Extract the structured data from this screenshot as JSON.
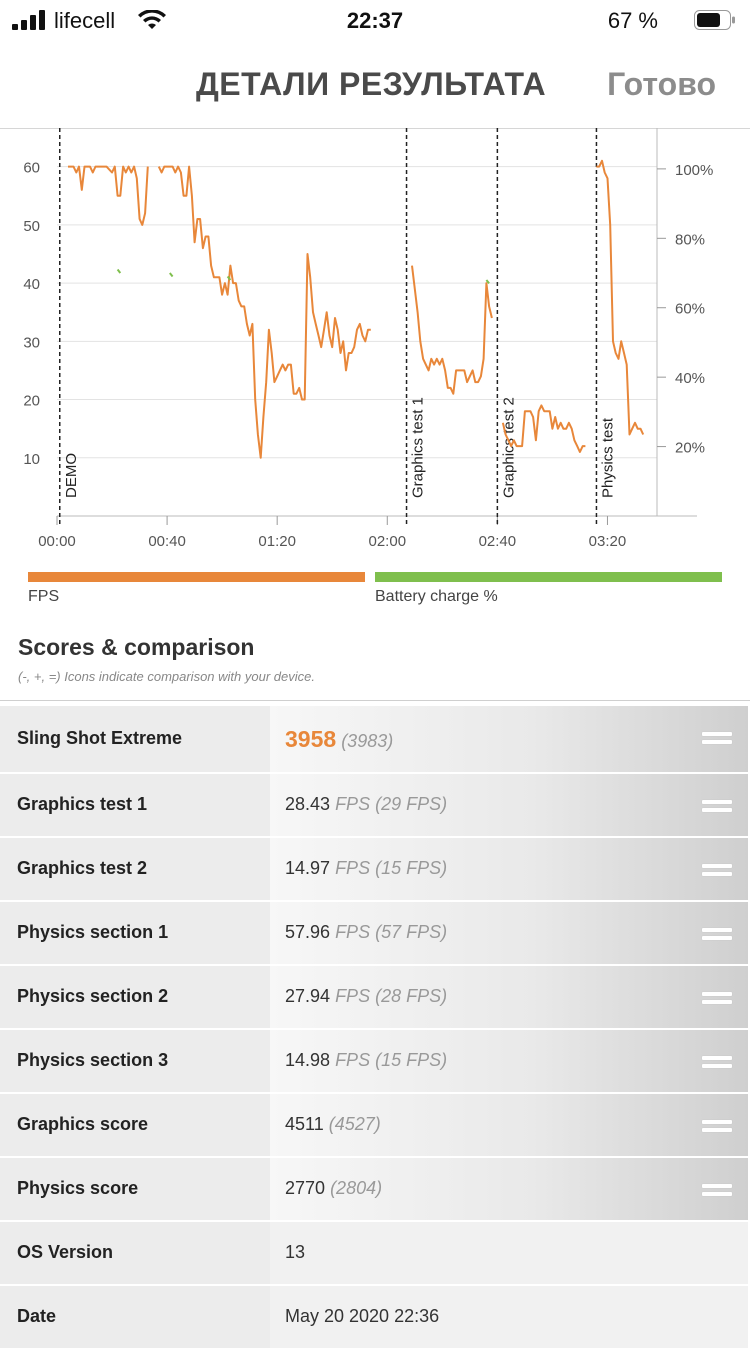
{
  "status": {
    "carrier": "lifecell",
    "time": "22:37",
    "battery": "67 %"
  },
  "nav": {
    "title": "ДЕТАЛИ РЕЗУЛЬТАТА",
    "done": "Готово"
  },
  "chart_data": {
    "type": "line",
    "x_ticks": [
      "00:00",
      "00:40",
      "01:20",
      "02:00",
      "02:40",
      "03:20"
    ],
    "x_tick_seconds": [
      0,
      40,
      80,
      120,
      160,
      200
    ],
    "xlim_seconds": [
      0,
      218
    ],
    "y_left_ticks": [
      "10",
      "20",
      "30",
      "40",
      "50",
      "60"
    ],
    "y_left_range": [
      0,
      62
    ],
    "y_right_ticks": [
      "20%",
      "40%",
      "60%",
      "80%",
      "100%"
    ],
    "y_right_range": [
      0,
      104
    ],
    "grid": true,
    "sections": [
      {
        "label": "DEMO",
        "t": 1
      },
      {
        "label": "Graphics test 1",
        "t": 127
      },
      {
        "label": "Graphics test 2",
        "t": 160
      },
      {
        "label": "Physics test",
        "t": 196
      }
    ],
    "series": [
      {
        "name": "FPS",
        "color": "#e8873a",
        "points": [
          [
            4,
            60
          ],
          [
            6,
            60
          ],
          [
            7,
            59
          ],
          [
            8,
            60
          ],
          [
            9,
            56
          ],
          [
            10,
            60
          ],
          [
            12,
            60
          ],
          [
            13,
            59
          ],
          [
            14,
            60
          ],
          [
            17,
            60
          ],
          [
            18,
            60
          ],
          [
            20,
            59
          ],
          [
            21,
            60
          ],
          [
            22,
            55
          ],
          [
            23,
            55
          ],
          [
            24,
            60
          ],
          [
            25,
            59
          ],
          [
            26,
            60
          ],
          [
            27,
            59
          ],
          [
            28,
            60
          ],
          [
            29,
            58
          ],
          [
            30,
            51
          ],
          [
            31,
            50
          ],
          [
            32,
            52
          ],
          [
            33,
            60
          ],
          [
            37,
            60
          ],
          [
            38,
            59
          ],
          [
            39,
            60
          ],
          [
            41,
            60
          ],
          [
            42,
            60
          ],
          [
            43,
            59
          ],
          [
            44,
            60
          ],
          [
            45,
            59
          ],
          [
            46,
            55
          ],
          [
            47,
            55
          ],
          [
            48,
            60
          ],
          [
            49,
            55
          ],
          [
            50,
            47
          ],
          [
            51,
            51
          ],
          [
            52,
            51
          ],
          [
            53,
            46
          ],
          [
            54,
            48
          ],
          [
            55,
            48
          ],
          [
            56,
            43
          ],
          [
            57,
            41
          ],
          [
            58,
            41
          ],
          [
            59,
            41
          ],
          [
            60,
            38
          ],
          [
            61,
            40
          ],
          [
            62,
            38
          ],
          [
            63,
            43
          ],
          [
            64,
            40
          ],
          [
            65,
            40
          ],
          [
            66,
            37
          ],
          [
            67,
            36
          ],
          [
            68,
            36
          ],
          [
            69,
            33
          ],
          [
            70,
            31
          ],
          [
            71,
            33
          ],
          [
            72,
            20
          ],
          [
            73,
            14
          ],
          [
            74,
            10
          ],
          [
            75,
            17
          ],
          [
            76,
            23
          ],
          [
            77,
            32
          ],
          [
            78,
            28
          ],
          [
            79,
            23
          ],
          [
            80,
            24
          ],
          [
            81,
            25
          ],
          [
            82,
            26
          ],
          [
            83,
            25
          ],
          [
            84,
            26
          ],
          [
            85,
            26
          ],
          [
            86,
            21
          ],
          [
            87,
            21
          ],
          [
            88,
            22
          ],
          [
            89,
            20
          ],
          [
            90,
            20
          ],
          [
            91,
            45
          ],
          [
            92,
            41
          ],
          [
            93,
            35
          ],
          [
            94,
            33
          ],
          [
            95,
            31
          ],
          [
            96,
            29
          ],
          [
            97,
            32
          ],
          [
            98,
            35
          ],
          [
            99,
            31
          ],
          [
            100,
            29
          ],
          [
            101,
            34
          ],
          [
            102,
            32
          ],
          [
            103,
            28
          ],
          [
            104,
            30
          ],
          [
            105,
            25
          ],
          [
            106,
            28
          ],
          [
            107,
            28
          ],
          [
            108,
            29
          ],
          [
            109,
            32
          ],
          [
            110,
            33
          ],
          [
            111,
            31
          ],
          [
            112,
            30
          ],
          [
            113,
            32
          ],
          [
            114,
            32
          ],
          [
            129,
            43
          ],
          [
            130,
            39
          ],
          [
            131,
            35
          ],
          [
            132,
            30
          ],
          [
            133,
            27
          ],
          [
            134,
            26
          ],
          [
            135,
            25
          ],
          [
            136,
            27
          ],
          [
            137,
            26
          ],
          [
            138,
            27
          ],
          [
            139,
            26
          ],
          [
            140,
            27
          ],
          [
            141,
            25
          ],
          [
            142,
            22
          ],
          [
            143,
            22
          ],
          [
            144,
            21
          ],
          [
            145,
            25
          ],
          [
            146,
            25
          ],
          [
            147,
            25
          ],
          [
            148,
            25
          ],
          [
            149,
            23
          ],
          [
            150,
            24
          ],
          [
            151,
            25
          ],
          [
            152,
            23
          ],
          [
            153,
            23
          ],
          [
            154,
            24
          ],
          [
            155,
            27
          ],
          [
            156,
            40
          ],
          [
            157,
            36
          ],
          [
            158,
            34
          ],
          [
            162,
            16
          ],
          [
            163,
            14
          ],
          [
            164,
            13
          ],
          [
            165,
            12
          ],
          [
            166,
            13
          ],
          [
            167,
            12
          ],
          [
            168,
            12
          ],
          [
            169,
            12
          ],
          [
            170,
            18
          ],
          [
            171,
            18
          ],
          [
            172,
            18
          ],
          [
            173,
            17
          ],
          [
            174,
            13
          ],
          [
            175,
            18
          ],
          [
            176,
            19
          ],
          [
            177,
            18
          ],
          [
            178,
            18
          ],
          [
            179,
            18
          ],
          [
            180,
            15
          ],
          [
            181,
            17
          ],
          [
            182,
            15
          ],
          [
            183,
            16
          ],
          [
            184,
            15
          ],
          [
            185,
            15
          ],
          [
            186,
            16
          ],
          [
            187,
            15
          ],
          [
            188,
            13
          ],
          [
            189,
            12
          ],
          [
            190,
            11
          ],
          [
            191,
            12
          ],
          [
            192,
            12
          ],
          [
            196,
            60
          ],
          [
            197,
            60
          ],
          [
            198,
            61
          ],
          [
            199,
            59
          ],
          [
            200,
            58
          ],
          [
            201,
            50
          ],
          [
            202,
            30
          ],
          [
            203,
            28
          ],
          [
            204,
            27
          ],
          [
            205,
            30
          ],
          [
            206,
            28
          ],
          [
            207,
            26
          ],
          [
            208,
            14
          ],
          [
            209,
            15
          ],
          [
            210,
            16
          ],
          [
            211,
            15
          ],
          [
            212,
            15
          ],
          [
            213,
            14
          ]
        ]
      },
      {
        "name": "Battery charge %",
        "color": "#7fbf4d",
        "points": [
          [
            4,
            71
          ],
          [
            22,
            71
          ],
          [
            23,
            70
          ],
          [
            41,
            70
          ],
          [
            42,
            69
          ],
          [
            62,
            69
          ],
          [
            63,
            68
          ],
          [
            156,
            68
          ],
          [
            157,
            67
          ],
          [
            213,
            67
          ]
        ]
      }
    ]
  },
  "legend": {
    "fps": "FPS",
    "battery": "Battery charge %"
  },
  "scores": {
    "title": "Scores & comparison",
    "note": "(-, +, =) Icons indicate comparison with your device.",
    "main": {
      "name": "Sling Shot Extreme",
      "value": "3958",
      "compare": "(3983)"
    },
    "rows": [
      {
        "name": "Graphics test 1",
        "value": "28.43",
        "unit": "FPS",
        "compare": "(29 FPS)"
      },
      {
        "name": "Graphics test 2",
        "value": "14.97",
        "unit": "FPS",
        "compare": "(15 FPS)"
      },
      {
        "name": "Physics section 1",
        "value": "57.96",
        "unit": "FPS",
        "compare": "(57 FPS)"
      },
      {
        "name": "Physics section 2",
        "value": "27.94",
        "unit": "FPS",
        "compare": "(28 FPS)"
      },
      {
        "name": "Physics section 3",
        "value": "14.98",
        "unit": "FPS",
        "compare": "(15 FPS)"
      },
      {
        "name": "Graphics score",
        "value": "4511",
        "unit": "",
        "compare": "(4527)"
      },
      {
        "name": "Physics score",
        "value": "2770",
        "unit": "",
        "compare": "(2804)"
      }
    ],
    "info": [
      {
        "name": "OS Version",
        "value": "13"
      },
      {
        "name": "Date",
        "value": "May 20 2020 22:36"
      }
    ]
  }
}
